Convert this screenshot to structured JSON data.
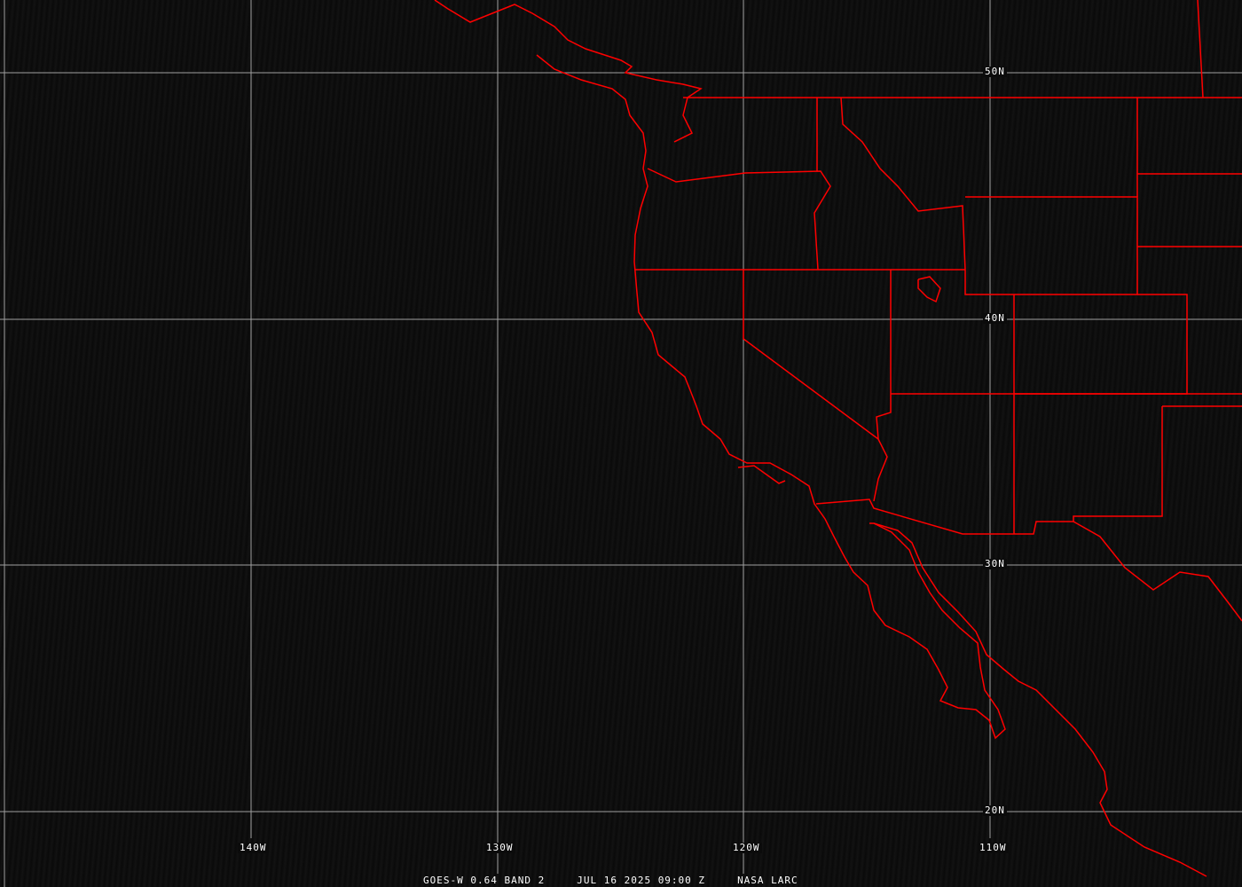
{
  "latitude_labels": [
    "50N",
    "40N",
    "30N",
    "20N"
  ],
  "longitude_labels": [
    "140W",
    "130W",
    "120W",
    "110W"
  ],
  "caption": {
    "product": "GOES-W 0.64 BAND 2",
    "datetime": "JUL 16 2025 09:00 Z",
    "credit": "NASA LARC"
  },
  "colors": {
    "borders": "#ff0000",
    "grid": "#a0a0a0",
    "background": "#0d0d0d",
    "text": "#ffffff"
  }
}
